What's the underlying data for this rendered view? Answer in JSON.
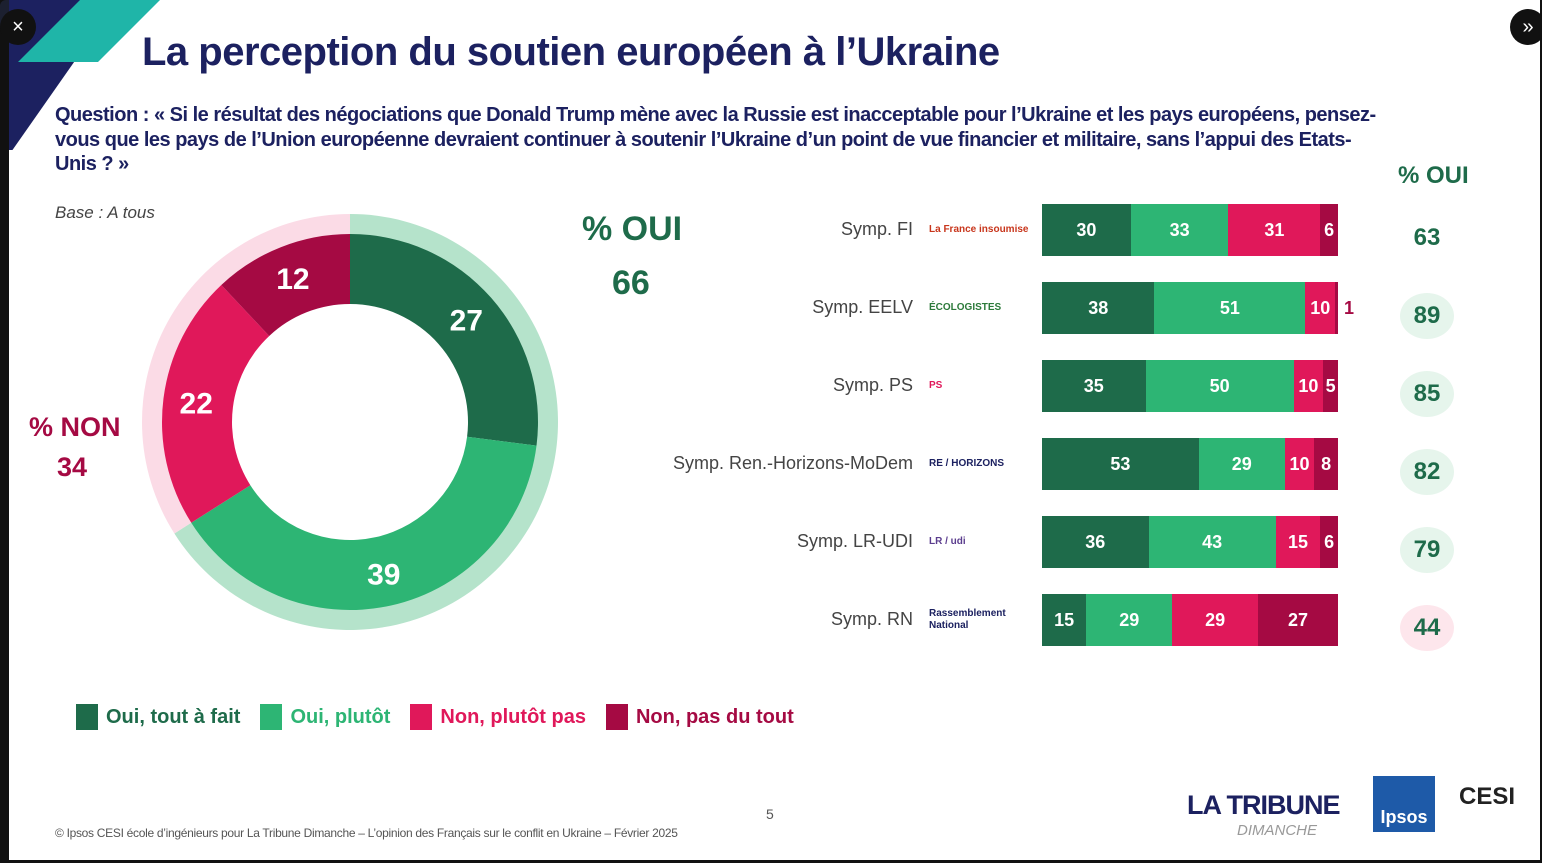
{
  "viewer": {
    "close_icon": "×",
    "next_icon": "»",
    "corner_icon": "⚙"
  },
  "slide": {
    "title": "La perception du soutien européen à l’Ukraine",
    "question": "Question : « Si le résultat des négociations que Donald Trump mène avec la Russie est inacceptable pour l’Ukraine et les pays européens, pensez-vous que les pays de l’Union européenne devraient continuer à soutenir l’Ukraine d’un point de vue financier et militaire, sans l’appui des Etats-Unis ? »",
    "base": "Base : A tous",
    "oui_label": "% OUI",
    "oui_value": "66",
    "non_label": "% NON",
    "non_value": "34",
    "oui_column_header": "% OUI",
    "footer": "© Ipsos CESI école d’ingénieurs pour La Tribune Dimanche  – L’opinion des Français sur le conflit en Ukraine –  Février 2025",
    "page_number": "5",
    "logos": {
      "tribune": "LA TRIBUNE",
      "dimanche": "DIMANCHE",
      "ipsos": "Ipsos",
      "cesi": "CESI"
    }
  },
  "colors": {
    "oui_tout": "#1e6b4a",
    "oui_plutot": "#2db574",
    "non_plutot": "#e0185a",
    "non_pas": "#a50a43",
    "oui_ring": "#b5e3cb",
    "non_ring": "#fbdbe6",
    "title": "#1c2160"
  },
  "chart_data": [
    {
      "type": "pie",
      "variant": "donut",
      "categories": [
        "Oui, tout à fait",
        "Oui, plutôt",
        "Non, plutôt pas",
        "Non, pas du tout"
      ],
      "values": [
        27,
        39,
        22,
        12
      ],
      "outer_ring": [
        {
          "name": "% OUI",
          "value": 66
        },
        {
          "name": "% NON",
          "value": 34
        }
      ]
    },
    {
      "type": "bar",
      "orientation": "horizontal",
      "stacked": true,
      "categories": [
        "Symp. FI",
        "Symp. EELV",
        "Symp. PS",
        "Symp. Ren.-Horizons-MoDem",
        "Symp. LR-UDI",
        "Symp. RN"
      ],
      "logos": [
        "La France insoumise",
        "ÉCOLOGISTES",
        "PS",
        "RE / HORIZONS",
        "LR / udi",
        "Rassemblement National"
      ],
      "series": [
        {
          "name": "Oui, tout à fait",
          "values": [
            30,
            38,
            35,
            53,
            36,
            15
          ]
        },
        {
          "name": "Oui, plutôt",
          "values": [
            33,
            51,
            50,
            29,
            43,
            29
          ]
        },
        {
          "name": "Non, plutôt pas",
          "values": [
            31,
            10,
            10,
            10,
            15,
            29
          ]
        },
        {
          "name": "Non, pas du tout",
          "values": [
            6,
            1,
            5,
            8,
            6,
            27
          ]
        }
      ],
      "pct_oui": [
        "63",
        "89",
        "85",
        "82",
        "79",
        "44"
      ],
      "xlim": [
        0,
        100
      ]
    }
  ],
  "legend": [
    "Oui, tout à fait",
    "Oui, plutôt",
    "Non, plutôt pas",
    "Non, pas du tout"
  ]
}
